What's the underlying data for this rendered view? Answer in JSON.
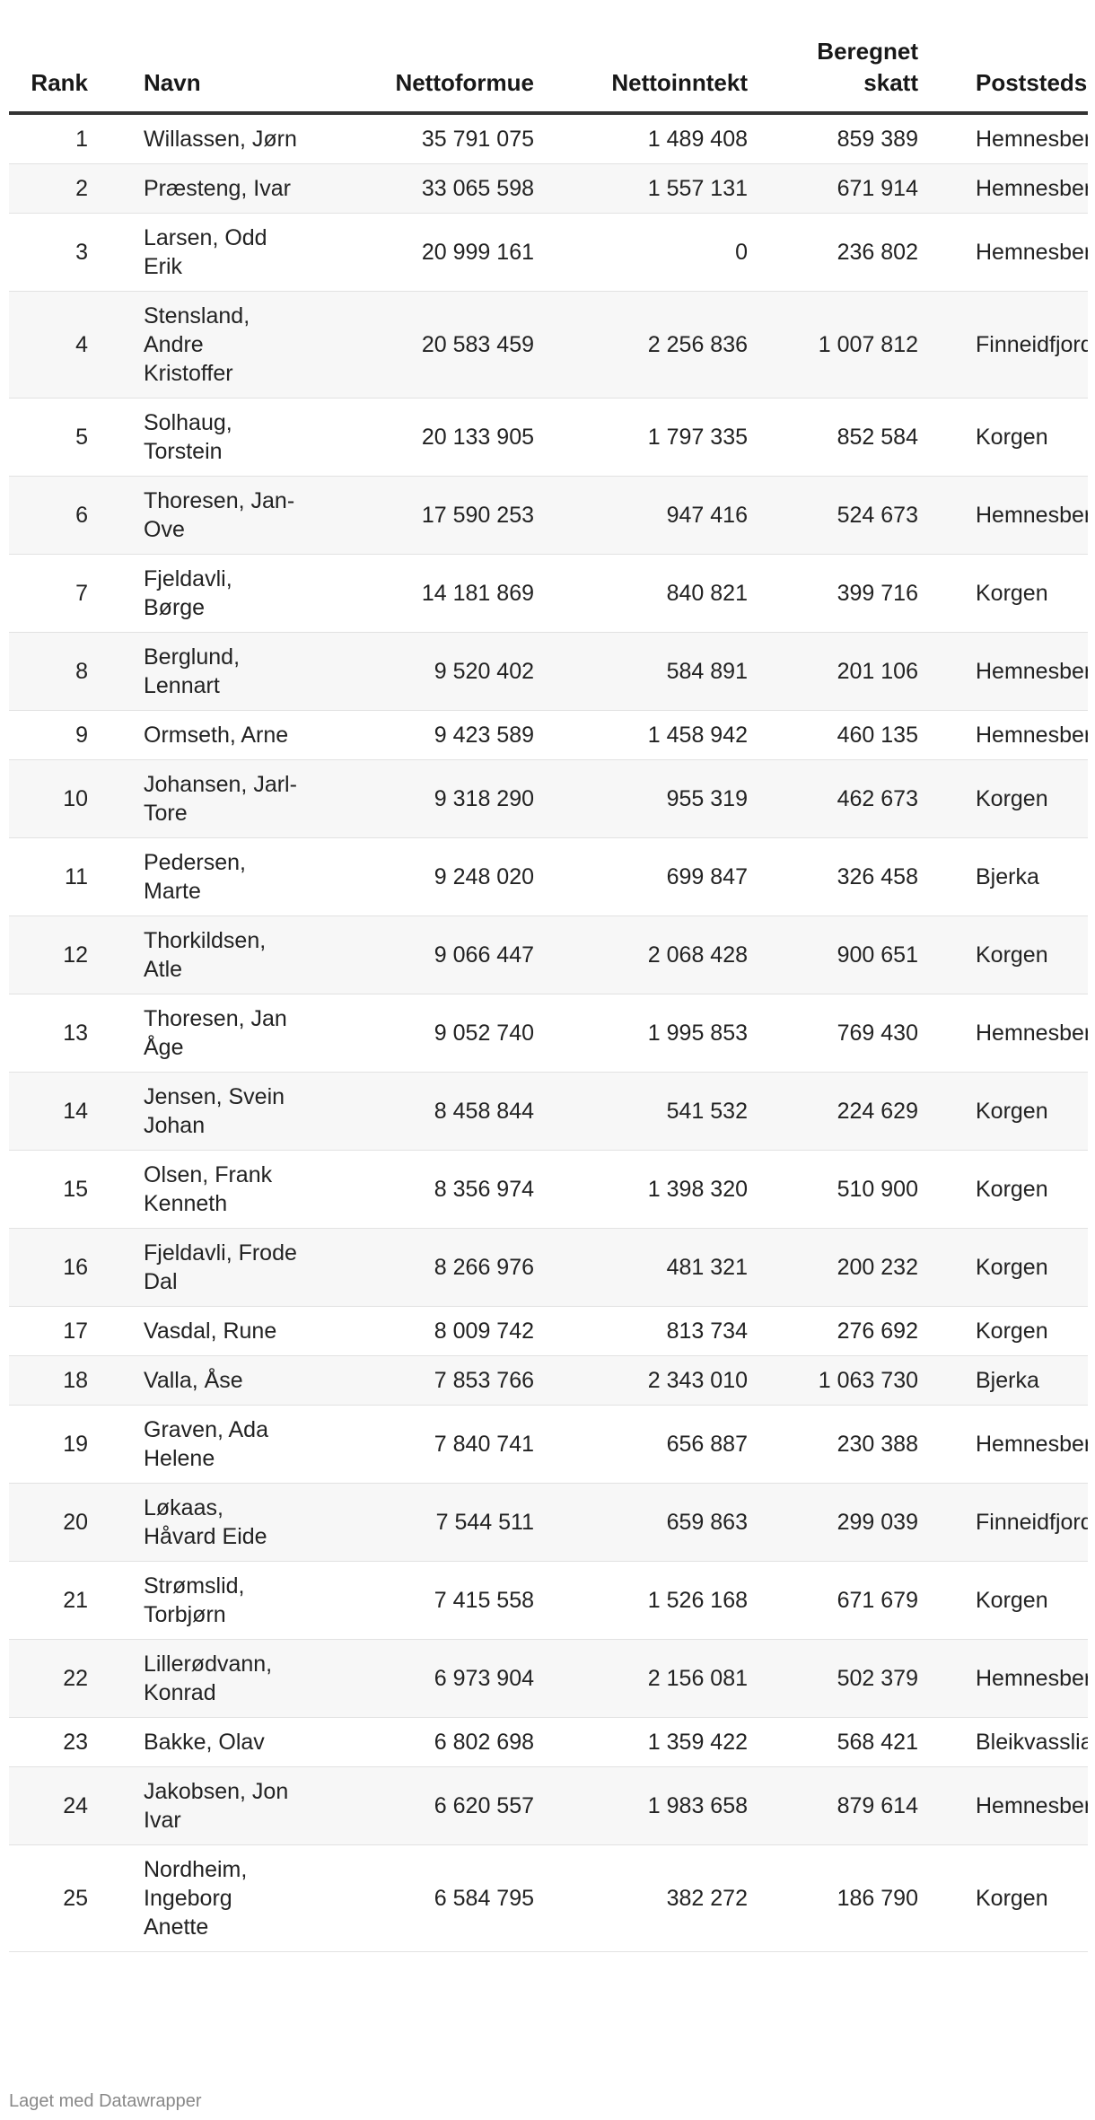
{
  "table": {
    "headers": [
      "Rank",
      "Navn",
      "Nettoformue",
      "Nettoinntekt",
      "Beregnet skatt",
      "Poststedsnavn"
    ],
    "rows": [
      {
        "rank": "1",
        "name": "Willassen, Jørn",
        "formue": "35 791 075",
        "inntekt": "1 489 408",
        "skatt": "859 389",
        "sted": "Hemnesberget"
      },
      {
        "rank": "2",
        "name": "Præsteng, Ivar",
        "formue": "33 065 598",
        "inntekt": "1 557 131",
        "skatt": "671 914",
        "sted": "Hemnesberget"
      },
      {
        "rank": "3",
        "name": "Larsen, Odd Erik",
        "formue": "20 999 161",
        "inntekt": "0",
        "skatt": "236 802",
        "sted": "Hemnesberget"
      },
      {
        "rank": "4",
        "name": "Stensland, Andre Kristoffer",
        "formue": "20 583 459",
        "inntekt": "2 256 836",
        "skatt": "1 007 812",
        "sted": "Finneidfjord"
      },
      {
        "rank": "5",
        "name": "Solhaug, Torstein",
        "formue": "20 133 905",
        "inntekt": "1 797 335",
        "skatt": "852 584",
        "sted": "Korgen"
      },
      {
        "rank": "6",
        "name": "Thoresen, Jan-Ove",
        "formue": "17 590 253",
        "inntekt": "947 416",
        "skatt": "524 673",
        "sted": "Hemnesberget"
      },
      {
        "rank": "7",
        "name": "Fjeldavli, Børge",
        "formue": "14 181 869",
        "inntekt": "840 821",
        "skatt": "399 716",
        "sted": "Korgen"
      },
      {
        "rank": "8",
        "name": "Berglund, Lennart",
        "formue": "9 520 402",
        "inntekt": "584 891",
        "skatt": "201 106",
        "sted": "Hemnesberget"
      },
      {
        "rank": "9",
        "name": "Ormseth, Arne",
        "formue": "9 423 589",
        "inntekt": "1 458 942",
        "skatt": "460 135",
        "sted": "Hemnesberget"
      },
      {
        "rank": "10",
        "name": "Johansen, Jarl-Tore",
        "formue": "9 318 290",
        "inntekt": "955 319",
        "skatt": "462 673",
        "sted": "Korgen"
      },
      {
        "rank": "11",
        "name": "Pedersen, Marte",
        "formue": "9 248 020",
        "inntekt": "699 847",
        "skatt": "326 458",
        "sted": "Bjerka"
      },
      {
        "rank": "12",
        "name": "Thorkildsen, Atle",
        "formue": "9 066 447",
        "inntekt": "2 068 428",
        "skatt": "900 651",
        "sted": "Korgen"
      },
      {
        "rank": "13",
        "name": "Thoresen, Jan Åge",
        "formue": "9 052 740",
        "inntekt": "1 995 853",
        "skatt": "769 430",
        "sted": "Hemnesberget"
      },
      {
        "rank": "14",
        "name": "Jensen, Svein Johan",
        "formue": "8 458 844",
        "inntekt": "541 532",
        "skatt": "224 629",
        "sted": "Korgen"
      },
      {
        "rank": "15",
        "name": "Olsen, Frank Kenneth",
        "formue": "8 356 974",
        "inntekt": "1 398 320",
        "skatt": "510 900",
        "sted": "Korgen"
      },
      {
        "rank": "16",
        "name": "Fjeldavli, Frode Dal",
        "formue": "8 266 976",
        "inntekt": "481 321",
        "skatt": "200 232",
        "sted": "Korgen"
      },
      {
        "rank": "17",
        "name": "Vasdal, Rune",
        "formue": "8 009 742",
        "inntekt": "813 734",
        "skatt": "276 692",
        "sted": "Korgen"
      },
      {
        "rank": "18",
        "name": "Valla, Åse",
        "formue": "7 853 766",
        "inntekt": "2 343 010",
        "skatt": "1 063 730",
        "sted": "Bjerka"
      },
      {
        "rank": "19",
        "name": "Graven, Ada Helene",
        "formue": "7 840 741",
        "inntekt": "656 887",
        "skatt": "230 388",
        "sted": "Hemnesberget"
      },
      {
        "rank": "20",
        "name": "Løkaas, Håvard Eide",
        "formue": "7 544 511",
        "inntekt": "659 863",
        "skatt": "299 039",
        "sted": "Finneidfjord"
      },
      {
        "rank": "21",
        "name": "Strømslid, Torbjørn",
        "formue": "7 415 558",
        "inntekt": "1 526 168",
        "skatt": "671 679",
        "sted": "Korgen"
      },
      {
        "rank": "22",
        "name": "Lillerødvann, Konrad",
        "formue": "6 973 904",
        "inntekt": "2 156 081",
        "skatt": "502 379",
        "sted": "Hemnesberget"
      },
      {
        "rank": "23",
        "name": "Bakke, Olav",
        "formue": "6 802 698",
        "inntekt": "1 359 422",
        "skatt": "568 421",
        "sted": "Bleikvasslia"
      },
      {
        "rank": "24",
        "name": "Jakobsen, Jon Ivar",
        "formue": "6 620 557",
        "inntekt": "1 983 658",
        "skatt": "879 614",
        "sted": "Hemnesberget"
      },
      {
        "rank": "25",
        "name": "Nordheim, Ingeborg Anette",
        "formue": "6 584 795",
        "inntekt": "382 272",
        "skatt": "186 790",
        "sted": "Korgen"
      }
    ]
  },
  "footer": {
    "credit": "Laget med Datawrapper"
  }
}
